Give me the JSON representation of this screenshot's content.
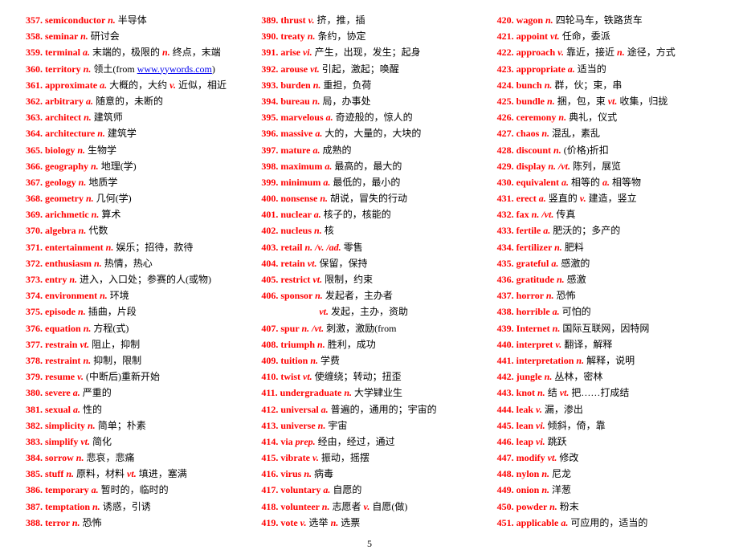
{
  "link_text": "www.yywords.com",
  "page_number": "5",
  "entries": [
    {
      "n": "357",
      "w": "semiconductor",
      "segs": [
        {
          "pos": "n.",
          "def": " 半导体"
        }
      ]
    },
    {
      "n": "358",
      "w": "seminar",
      "segs": [
        {
          "pos": "n.",
          "def": " 研讨会"
        }
      ]
    },
    {
      "n": "359",
      "w": "terminal",
      "segs": [
        {
          "pos": "a.",
          "def": " 末端的，极限的 "
        },
        {
          "pos": "n.",
          "def": " 终点，末端"
        }
      ]
    },
    {
      "n": "360",
      "w": "territory",
      "segs": [
        {
          "pos": "n.",
          "def": " 领土"
        }
      ],
      "link": true
    },
    {
      "n": "361",
      "w": "approximate",
      "segs": [
        {
          "pos": "a.",
          "def": " 大概的，大约 "
        },
        {
          "pos": "v.",
          "def": " 近似，相近"
        }
      ]
    },
    {
      "n": "362",
      "w": "arbitrary",
      "segs": [
        {
          "pos": "a.",
          "def": " 随意的，未断的"
        }
      ]
    },
    {
      "n": "363",
      "w": "architect",
      "segs": [
        {
          "pos": "n.",
          "def": " 建筑师"
        }
      ]
    },
    {
      "n": "364",
      "w": "architecture",
      "segs": [
        {
          "pos": "n.",
          "def": " 建筑学"
        }
      ]
    },
    {
      "n": "365",
      "w": "biology",
      "segs": [
        {
          "pos": "n.",
          "def": " 生物学"
        }
      ]
    },
    {
      "n": "366",
      "w": "geography",
      "segs": [
        {
          "pos": "n.",
          "def": " 地理(学)"
        }
      ]
    },
    {
      "n": "367",
      "w": "geology",
      "segs": [
        {
          "pos": "n.",
          "def": " 地质学"
        }
      ]
    },
    {
      "n": "368",
      "w": "geometry",
      "segs": [
        {
          "pos": "n.",
          "def": " 几何(学)"
        }
      ]
    },
    {
      "n": "369",
      "w": "arichmetic",
      "segs": [
        {
          "pos": "n.",
          "def": " 算术"
        }
      ]
    },
    {
      "n": "370",
      "w": "algebra",
      "segs": [
        {
          "pos": "n.",
          "def": " 代数"
        }
      ]
    },
    {
      "n": "371",
      "w": "entertainment",
      "segs": [
        {
          "pos": "n.",
          "def": " 娱乐；招待，款待"
        }
      ]
    },
    {
      "n": "372",
      "w": "enthusiasm",
      "segs": [
        {
          "pos": "n.",
          "def": " 热情，热心"
        }
      ]
    },
    {
      "n": "373",
      "w": "entry",
      "segs": [
        {
          "pos": "n.",
          "def": " 进入，入口处；参赛的人(或物)"
        }
      ]
    },
    {
      "n": "374",
      "w": "environment",
      "segs": [
        {
          "pos": "n.",
          "def": " 环境"
        }
      ]
    },
    {
      "n": "375",
      "w": "episode",
      "segs": [
        {
          "pos": "n.",
          "def": " 插曲，片段"
        }
      ]
    },
    {
      "n": "376",
      "w": "equation",
      "segs": [
        {
          "pos": "n.",
          "def": " 方程(式)"
        }
      ]
    },
    {
      "n": "377",
      "w": "restrain",
      "segs": [
        {
          "pos": "vt.",
          "def": " 阻止，抑制"
        }
      ]
    },
    {
      "n": "378",
      "w": "restraint",
      "segs": [
        {
          "pos": "n.",
          "def": " 抑制，限制"
        }
      ]
    },
    {
      "n": "379",
      "w": "resume",
      "segs": [
        {
          "pos": "v.",
          "def": " (中断后)重新开始"
        }
      ]
    },
    {
      "n": "380",
      "w": "severe",
      "segs": [
        {
          "pos": "a.",
          "def": " 严重的"
        }
      ]
    },
    {
      "n": "381",
      "w": "sexual",
      "segs": [
        {
          "pos": "a.",
          "def": " 性的"
        }
      ]
    },
    {
      "n": "382",
      "w": "simplicity",
      "segs": [
        {
          "pos": "n.",
          "def": " 简单；朴素"
        }
      ]
    },
    {
      "n": "383",
      "w": "simplify",
      "segs": [
        {
          "pos": "vt.",
          "def": " 简化"
        }
      ]
    },
    {
      "n": "384",
      "w": "sorrow",
      "segs": [
        {
          "pos": "n.",
          "def": " 悲哀，悲痛"
        }
      ]
    },
    {
      "n": "385",
      "w": "stuff",
      "segs": [
        {
          "pos": "n.",
          "def": " 原料，材料 "
        },
        {
          "pos": "vt.",
          "def": " 填进，塞满"
        }
      ]
    },
    {
      "n": "386",
      "w": "temporary",
      "segs": [
        {
          "pos": "a.",
          "def": " 暂时的，临时的"
        }
      ]
    },
    {
      "n": "387",
      "w": "temptation",
      "segs": [
        {
          "pos": "n.",
          "def": " 诱惑，引诱"
        }
      ]
    },
    {
      "n": "388",
      "w": "terror",
      "segs": [
        {
          "pos": "n.",
          "def": " 恐怖"
        }
      ]
    },
    {
      "n": "389",
      "w": "thrust",
      "segs": [
        {
          "pos": "v.",
          "def": " 挤，推，插"
        }
      ]
    },
    {
      "n": "390",
      "w": "treaty",
      "segs": [
        {
          "pos": "n.",
          "def": " 条约，协定"
        }
      ]
    },
    {
      "n": "391",
      "w": "arise",
      "segs": [
        {
          "pos": "vi.",
          "def": " 产生，出现，发生；起身"
        }
      ]
    },
    {
      "n": "392",
      "w": "arouse",
      "segs": [
        {
          "pos": "vt.",
          "def": " 引起，激起；唤醒"
        }
      ]
    },
    {
      "n": "393",
      "w": "burden",
      "segs": [
        {
          "pos": "n.",
          "def": " 重担，负荷"
        }
      ]
    },
    {
      "n": "394",
      "w": "bureau",
      "segs": [
        {
          "pos": "n.",
          "def": " 局，办事处"
        }
      ]
    },
    {
      "n": "395",
      "w": "marvelous",
      "segs": [
        {
          "pos": "a.",
          "def": " 奇迹般的，惊人的"
        }
      ]
    },
    {
      "n": "396",
      "w": "massive",
      "segs": [
        {
          "pos": "a.",
          "def": " 大的，大量的，大块的"
        }
      ]
    },
    {
      "n": "397",
      "w": "mature",
      "segs": [
        {
          "pos": "a.",
          "def": " 成熟的"
        }
      ]
    },
    {
      "n": "398",
      "w": "maximum",
      "segs": [
        {
          "pos": "a.",
          "def": " 最高的，最大的"
        }
      ]
    },
    {
      "n": "399",
      "w": "minimum",
      "segs": [
        {
          "pos": "a.",
          "def": " 最低的，最小的"
        }
      ]
    },
    {
      "n": "400",
      "w": "nonsense",
      "segs": [
        {
          "pos": "n.",
          "def": " 胡说，冒失的行动"
        }
      ]
    },
    {
      "n": "401",
      "w": "nuclear",
      "segs": [
        {
          "pos": "a.",
          "def": " 核子的，核能的"
        }
      ]
    },
    {
      "n": "402",
      "w": "nucleus",
      "segs": [
        {
          "pos": "n.",
          "def": " 核"
        }
      ]
    },
    {
      "n": "403",
      "w": "retail",
      "segs": [
        {
          "pos": "n. /v. /ad.",
          "def": " 零售"
        }
      ]
    },
    {
      "n": "404",
      "w": "retain",
      "segs": [
        {
          "pos": "vt.",
          "def": " 保留，保持"
        }
      ]
    },
    {
      "n": "405",
      "w": "restrict",
      "segs": [
        {
          "pos": "vt.",
          "def": " 限制，约束"
        }
      ]
    },
    {
      "n": "406",
      "w": "sponsor",
      "segs": [
        {
          "pos": "n.",
          "def": " 发起者，主办者"
        }
      ]
    },
    {
      "n": "",
      "w": "",
      "cont": true,
      "segs": [
        {
          "pos": "vt.",
          "def": " 发起，主办，资助"
        }
      ]
    },
    {
      "n": "407",
      "w": "spur",
      "segs": [
        {
          "pos": "n. /vt.",
          "def": " 刺激，激励(from"
        }
      ]
    },
    {
      "n": "408",
      "w": "triumph",
      "segs": [
        {
          "pos": "n.",
          "def": " 胜利，成功"
        }
      ]
    },
    {
      "n": "409",
      "w": "tuition",
      "segs": [
        {
          "pos": "n.",
          "def": " 学费"
        }
      ]
    },
    {
      "n": "410",
      "w": "twist",
      "segs": [
        {
          "pos": "vt.",
          "def": " 使缠绕；转动；扭歪"
        }
      ]
    },
    {
      "n": "411",
      "w": "undergraduate",
      "segs": [
        {
          "pos": "n.",
          "def": " 大学肄业生"
        }
      ]
    },
    {
      "n": "412",
      "w": "universal",
      "segs": [
        {
          "pos": "a.",
          "def": " 普遍的，通用的；宇宙的"
        }
      ]
    },
    {
      "n": "413",
      "w": "universe",
      "segs": [
        {
          "pos": "n.",
          "def": " 宇宙"
        }
      ]
    },
    {
      "n": "414",
      "w": "via",
      "segs": [
        {
          "pos": "prep.",
          "def": " 经由，经过，通过"
        }
      ]
    },
    {
      "n": "415",
      "w": "vibrate",
      "segs": [
        {
          "pos": "v.",
          "def": " 振动，摇摆"
        }
      ]
    },
    {
      "n": "416",
      "w": "virus",
      "segs": [
        {
          "pos": "n.",
          "def": " 病毒"
        }
      ]
    },
    {
      "n": "417",
      "w": "voluntary",
      "segs": [
        {
          "pos": "a.",
          "def": " 自愿的"
        }
      ]
    },
    {
      "n": "418",
      "w": "volunteer",
      "segs": [
        {
          "pos": "n.",
          "def": " 志愿者 "
        },
        {
          "pos": "v.",
          "def": " 自愿(做)"
        }
      ]
    },
    {
      "n": "419",
      "w": "vote",
      "segs": [
        {
          "pos": "v.",
          "def": " 选举 "
        },
        {
          "pos": "n.",
          "def": " 选票"
        }
      ]
    },
    {
      "n": "420",
      "w": "wagon",
      "segs": [
        {
          "pos": "n.",
          "def": " 四轮马车，铁路货车"
        }
      ]
    },
    {
      "n": "421",
      "w": "appoint",
      "segs": [
        {
          "pos": "vt.",
          "def": " 任命，委派"
        }
      ]
    },
    {
      "n": "422",
      "w": "approach",
      "segs": [
        {
          "pos": "v.",
          "def": " 靠近，接近 "
        },
        {
          "pos": "n.",
          "def": " 途径，方式"
        }
      ]
    },
    {
      "n": "423",
      "w": "appropriate",
      "segs": [
        {
          "pos": "a.",
          "def": " 适当的"
        }
      ]
    },
    {
      "n": "424",
      "w": "bunch",
      "segs": [
        {
          "pos": "n.",
          "def": " 群，伙；束，串"
        }
      ]
    },
    {
      "n": "425",
      "w": "bundle",
      "segs": [
        {
          "pos": "n.",
          "def": " 捆，包，束 "
        },
        {
          "pos": "vt.",
          "def": " 收集，归拢"
        }
      ]
    },
    {
      "n": "426",
      "w": "ceremony",
      "segs": [
        {
          "pos": "n.",
          "def": " 典礼，仪式"
        }
      ]
    },
    {
      "n": "427",
      "w": "chaos",
      "segs": [
        {
          "pos": "n.",
          "def": " 混乱，素乱"
        }
      ]
    },
    {
      "n": "428",
      "w": "discount",
      "segs": [
        {
          "pos": "n.",
          "def": " (价格)折扣"
        }
      ]
    },
    {
      "n": "429",
      "w": "display",
      "segs": [
        {
          "pos": "n. /vt.",
          "def": " 陈列，展览"
        }
      ]
    },
    {
      "n": "430",
      "w": "equivalent",
      "segs": [
        {
          "pos": "a.",
          "def": " 相等的 "
        },
        {
          "pos": "a.",
          "def": " 相等物"
        }
      ]
    },
    {
      "n": "431",
      "w": "erect",
      "segs": [
        {
          "pos": "a.",
          "def": " 竖直的 "
        },
        {
          "pos": "v.",
          "def": " 建造，竖立"
        }
      ]
    },
    {
      "n": "432",
      "w": "fax",
      "segs": [
        {
          "pos": "n. /vt.",
          "def": " 传真"
        }
      ]
    },
    {
      "n": "433",
      "w": "fertile",
      "segs": [
        {
          "pos": "a.",
          "def": " 肥沃的；多产的"
        }
      ]
    },
    {
      "n": "434",
      "w": "fertilizer",
      "segs": [
        {
          "pos": "n.",
          "def": " 肥料"
        }
      ]
    },
    {
      "n": "435",
      "w": "grateful",
      "segs": [
        {
          "pos": "a.",
          "def": " 感激的"
        }
      ]
    },
    {
      "n": "436",
      "w": "gratitude",
      "segs": [
        {
          "pos": "n.",
          "def": " 感激"
        }
      ]
    },
    {
      "n": "437",
      "w": "horror",
      "segs": [
        {
          "pos": "n.",
          "def": " 恐怖"
        }
      ]
    },
    {
      "n": "438",
      "w": "horrible",
      "segs": [
        {
          "pos": "a.",
          "def": " 可怕的"
        }
      ]
    },
    {
      "n": "439",
      "w": "Internet",
      "segs": [
        {
          "pos": "n.",
          "def": " 国际互联网，因特网"
        }
      ]
    },
    {
      "n": "440",
      "w": "interpret",
      "segs": [
        {
          "pos": "v.",
          "def": " 翻译，解释"
        }
      ]
    },
    {
      "n": "441",
      "w": "interpretation",
      "segs": [
        {
          "pos": "n.",
          "def": " 解释，说明"
        }
      ]
    },
    {
      "n": "442",
      "w": "jungle",
      "segs": [
        {
          "pos": "n.",
          "def": " 丛林，密林"
        }
      ]
    },
    {
      "n": "443",
      "w": "knot",
      "segs": [
        {
          "pos": "n.",
          "def": " 结 "
        },
        {
          "pos": "vt.",
          "def": " 把……打成结"
        }
      ]
    },
    {
      "n": "444",
      "w": "leak",
      "segs": [
        {
          "pos": "v.",
          "def": " 漏，渗出"
        }
      ]
    },
    {
      "n": "445",
      "w": "lean",
      "segs": [
        {
          "pos": "vi.",
          "def": " 倾斜，倚，靠"
        }
      ]
    },
    {
      "n": "446",
      "w": "leap",
      "segs": [
        {
          "pos": "vi.",
          "def": " 跳跃"
        }
      ]
    },
    {
      "n": "447",
      "w": "modify",
      "segs": [
        {
          "pos": "vt.",
          "def": " 修改"
        }
      ]
    },
    {
      "n": "448",
      "w": "nylon",
      "segs": [
        {
          "pos": "n.",
          "def": " 尼龙"
        }
      ]
    },
    {
      "n": "449",
      "w": "onion",
      "segs": [
        {
          "pos": "n.",
          "def": " 洋葱"
        }
      ]
    },
    {
      "n": "450",
      "w": "powder",
      "segs": [
        {
          "pos": "n.",
          "def": " 粉末"
        }
      ]
    },
    {
      "n": "451",
      "w": "applicable",
      "segs": [
        {
          "pos": "a.",
          "def": " 可应用的，适当的"
        }
      ]
    }
  ]
}
